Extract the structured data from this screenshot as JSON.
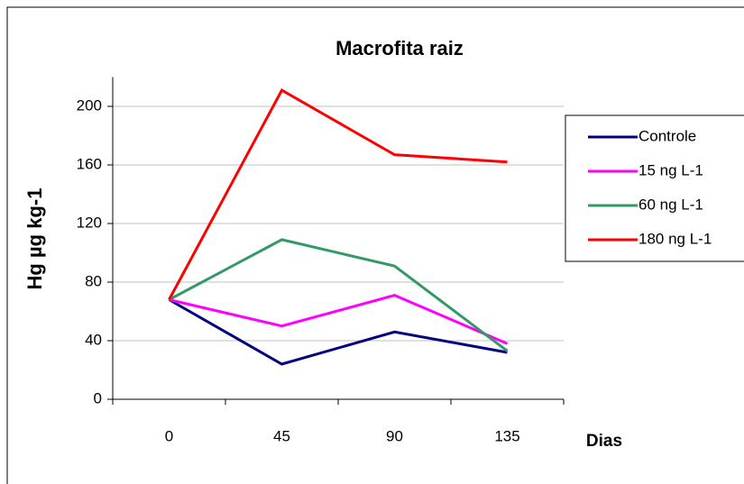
{
  "chart_data": {
    "type": "line",
    "title": "Macrofita raiz",
    "y_label": "Hg µg kg-1",
    "x_label": "Dias",
    "categories": [
      "0",
      "45",
      "90",
      "135"
    ],
    "series": [
      {
        "name": "Controle",
        "color": "#000080",
        "values": [
          68,
          24,
          46,
          32
        ]
      },
      {
        "name": "15 ng L-1",
        "color": "#ff00ff",
        "values": [
          68,
          50,
          71,
          38
        ]
      },
      {
        "name": "60 ng L-1",
        "color": "#339966",
        "values": [
          68,
          109,
          91,
          33
        ]
      },
      {
        "name": "180 ng L-1",
        "color": "#ff0000",
        "values": [
          68,
          211,
          167,
          162
        ]
      }
    ],
    "ylim": [
      0,
      220
    ],
    "yticks": [
      0,
      40,
      80,
      120,
      160,
      200
    ],
    "grid": true,
    "legend": "right"
  }
}
